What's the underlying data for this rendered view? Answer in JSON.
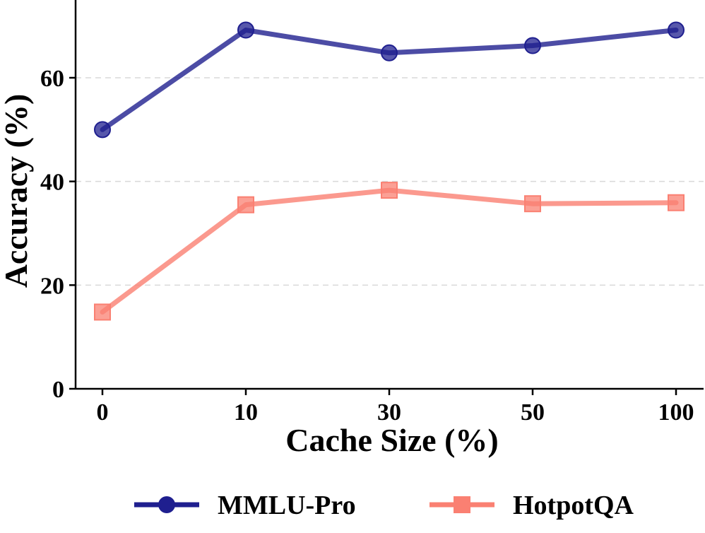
{
  "chart_data": {
    "type": "line",
    "title": "",
    "xlabel": "Cache Size (%)",
    "ylabel": "Accuracy (%)",
    "categories": [
      "0",
      "10",
      "30",
      "50",
      "100"
    ],
    "ylim": [
      0,
      75
    ],
    "yticks": [
      0,
      20,
      40,
      60
    ],
    "grid": "horizontal-dashed",
    "legend_position": "bottom",
    "series": [
      {
        "name": "MMLU-Pro",
        "values": [
          50.0,
          69.2,
          64.8,
          66.2,
          69.2
        ],
        "color": "#1f1f8f",
        "marker": "circle"
      },
      {
        "name": "HotpotQA",
        "values": [
          14.8,
          35.5,
          38.3,
          35.7,
          35.9
        ],
        "color": "#fa8072",
        "marker": "square"
      }
    ]
  }
}
